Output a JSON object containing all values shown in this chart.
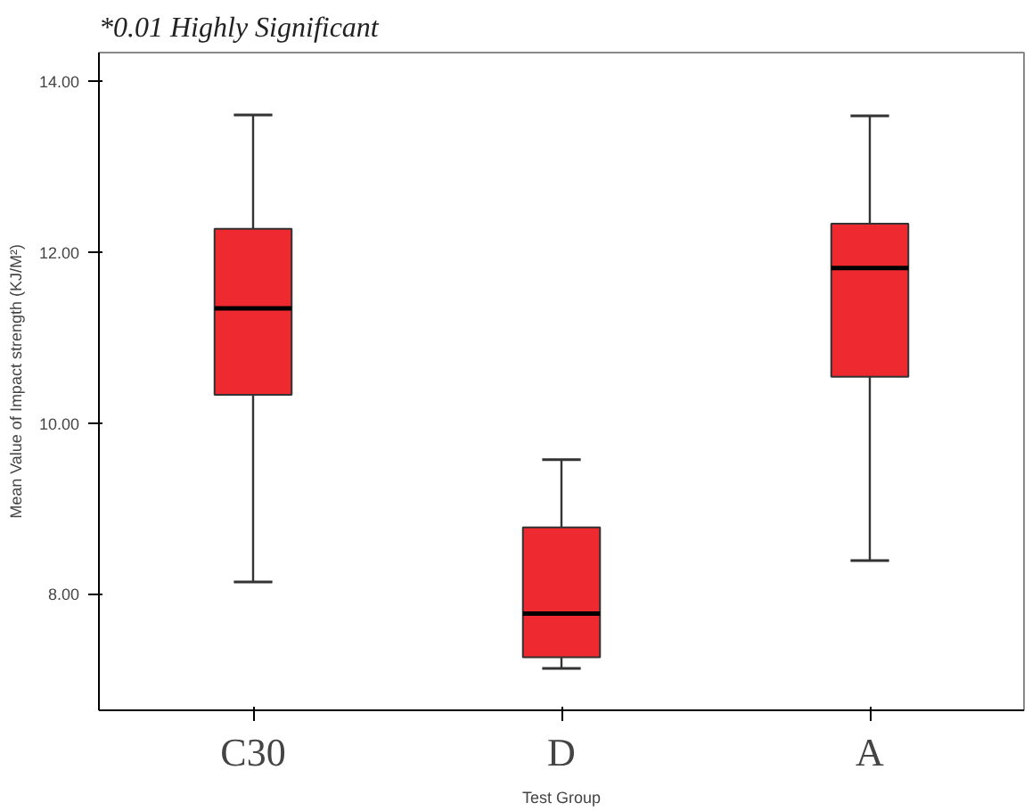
{
  "chart_data": {
    "type": "box",
    "annotations": [
      "*0.01 Highly Significant"
    ],
    "xlabel": "Test Group",
    "ylabel": "Mean Value of Impact strength (KJ/M²)",
    "categories": [
      "C30",
      "D",
      "A"
    ],
    "color": "#ee2a30",
    "boxes": [
      {
        "low": 8.14,
        "q1": 10.33,
        "median": 11.34,
        "q3": 12.27,
        "high": 13.6
      },
      {
        "low": 7.13,
        "q1": 7.26,
        "median": 7.77,
        "q3": 8.78,
        "high": 9.57
      },
      {
        "low": 8.39,
        "q1": 10.54,
        "median": 11.81,
        "q3": 12.33,
        "high": 13.59
      }
    ],
    "ylim": [
      6.64,
      14.33
    ],
    "yticks": [
      {
        "value": 8,
        "label": "8.00"
      },
      {
        "value": 10,
        "label": "10.00"
      },
      {
        "value": 12,
        "label": "12.00"
      },
      {
        "value": 14,
        "label": "14.00"
      }
    ],
    "grid": false
  }
}
